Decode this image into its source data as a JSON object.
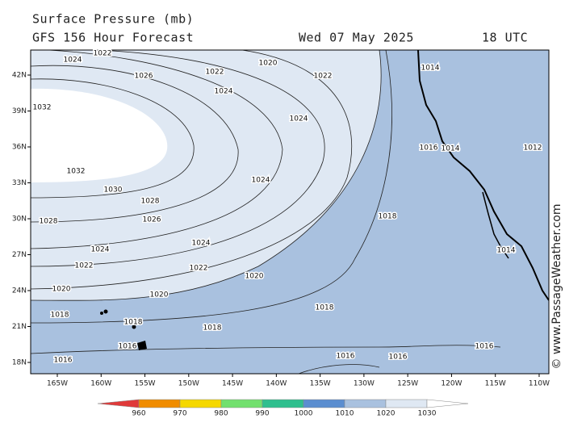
{
  "header": {
    "title": "Surface Pressure (mb)",
    "subtitle": "GFS 156 Hour Forecast",
    "date": "Wed 07 May 2025",
    "time": "18 UTC"
  },
  "map": {
    "latitudes": [
      "42N",
      "39N",
      "36N",
      "33N",
      "30N",
      "27N",
      "24N",
      "21N",
      "18N"
    ],
    "longitudes": [
      "165W",
      "160W",
      "155W",
      "150W",
      "145W",
      "140W",
      "135W",
      "130W",
      "125W",
      "120W",
      "115W",
      "110W"
    ],
    "isobar_labels": [
      "1022",
      "1020",
      "1024",
      "1026",
      "1022",
      "1022",
      "1024",
      "1032",
      "1024",
      "1032",
      "1030",
      "1028",
      "1024",
      "1026",
      "1028",
      "1018",
      "1024",
      "1024",
      "1022",
      "1022",
      "1020",
      "1020",
      "1020",
      "1018",
      "1018",
      "1018",
      "1018",
      "1016",
      "1016",
      "1016",
      "1016",
      "1016",
      "1014",
      "1016",
      "1014",
      "1012",
      "1014"
    ]
  },
  "colorbar": {
    "ticks": [
      960,
      970,
      980,
      990,
      1000,
      1010,
      1020,
      1030
    ],
    "colors": [
      "#e03a3a",
      "#f08c00",
      "#f5d800",
      "#72e06e",
      "#2fbf8e",
      "#5b8ed0",
      "#a9c1df",
      "#dfe8f3",
      "#ffffff"
    ]
  },
  "watermark": "© www.PassageWeather.com"
}
